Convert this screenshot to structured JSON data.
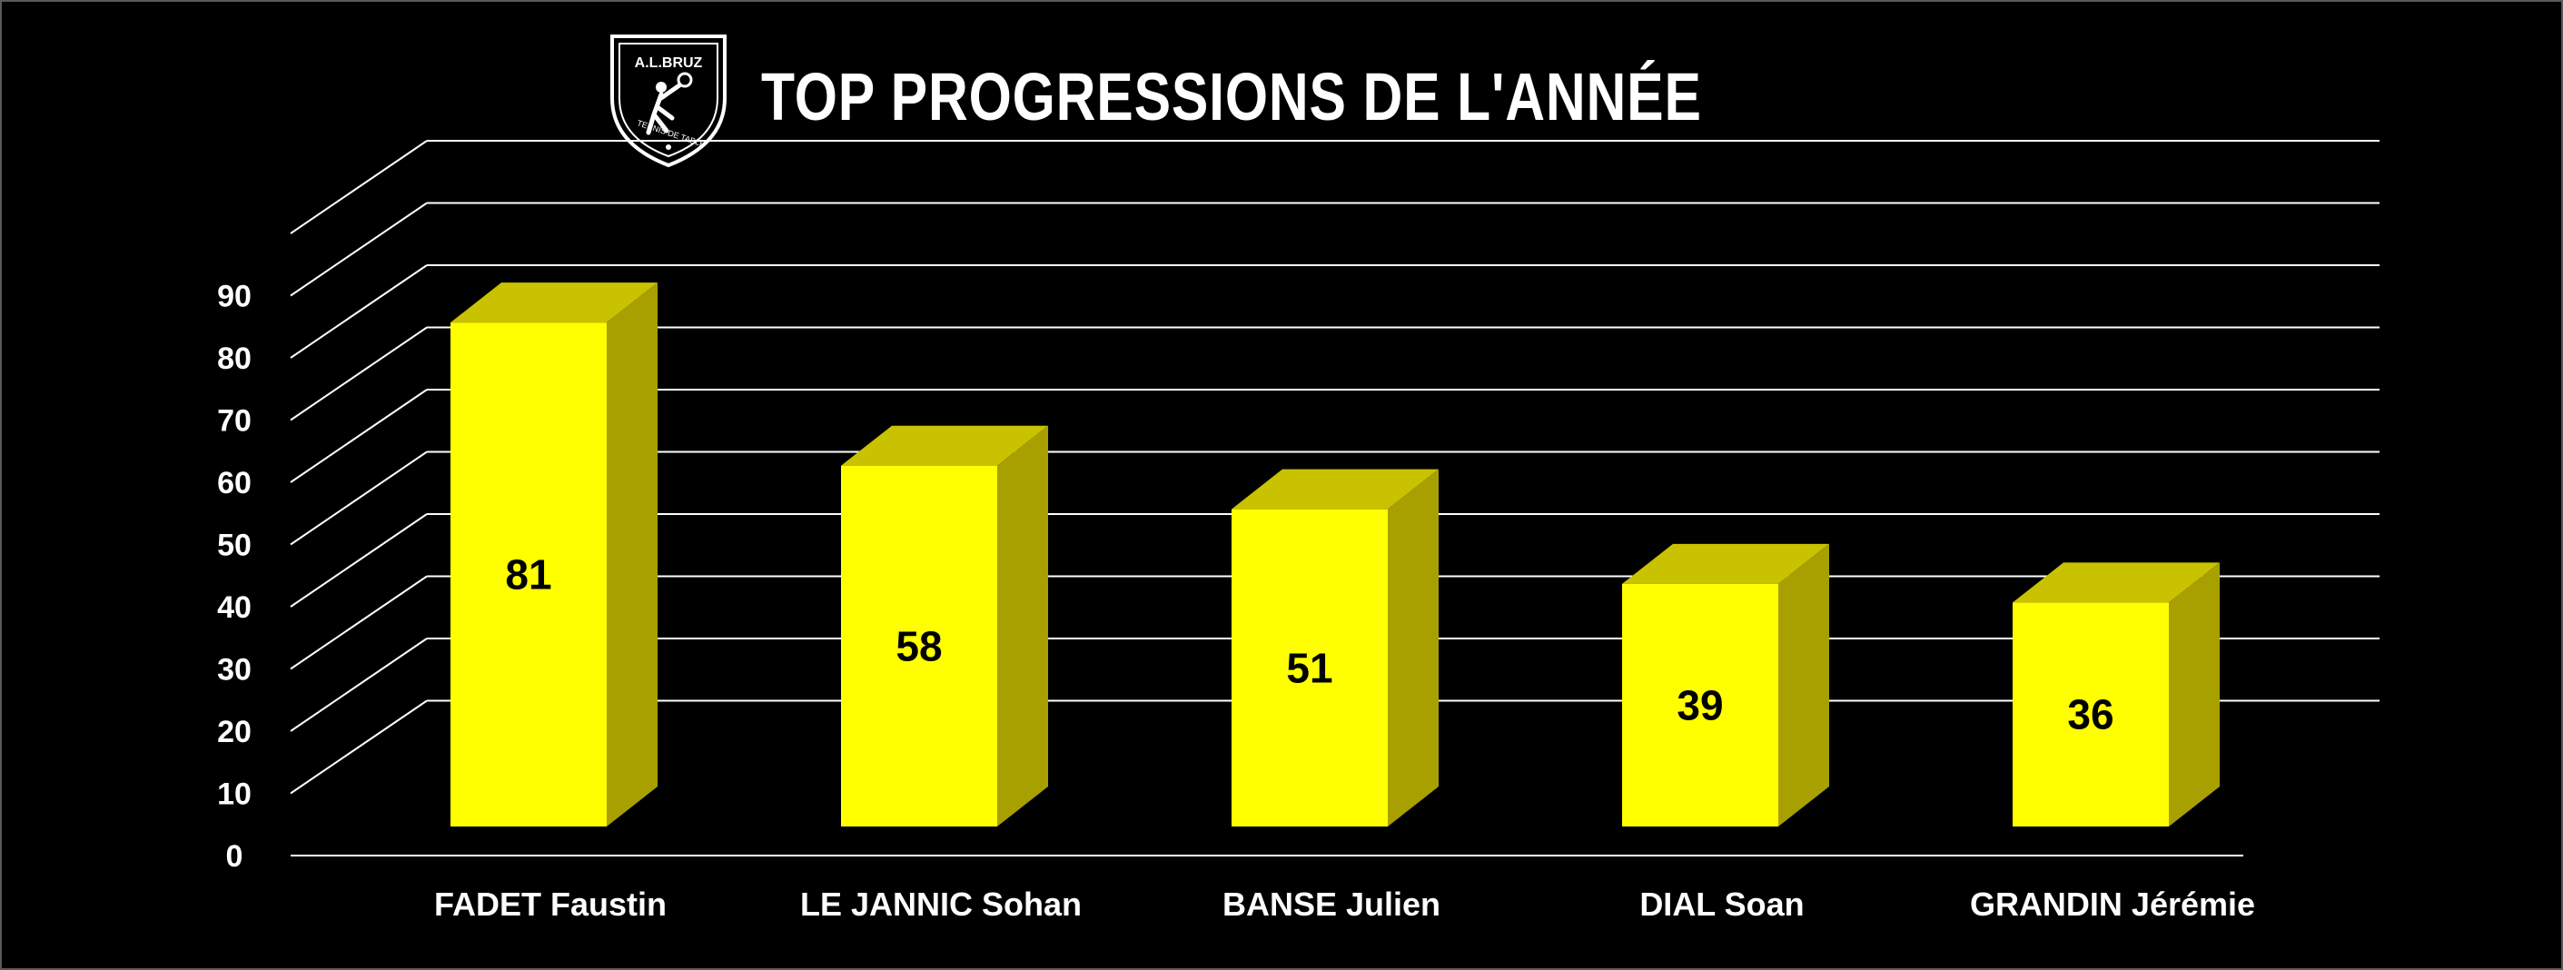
{
  "title": "TOP PROGRESSIONS DE L'ANNÉE",
  "logo": {
    "top_text": "A.L.BRUZ",
    "bottom_text": "TENNIS DE TABLE"
  },
  "colors": {
    "bar_front": "#FFFF00",
    "bar_top": "#C9C200",
    "bar_side": "#A8A000",
    "grid": "#FFFFFF",
    "background": "#000000"
  },
  "chart_data": {
    "type": "bar",
    "style": "3d-column",
    "title": "TOP PROGRESSIONS DE L'ANNÉE",
    "categories": [
      "FADET Faustin",
      "LE JANNIC Sohan",
      "BANSE Julien",
      "DIAL Soan",
      "GRANDIN Jérémie"
    ],
    "values": [
      81,
      58,
      51,
      39,
      36
    ],
    "data_labels": [
      "81",
      "58",
      "51",
      "39",
      "36"
    ],
    "yticks": [
      0,
      10,
      20,
      30,
      40,
      50,
      60,
      70,
      80,
      90
    ],
    "ylim": [
      0,
      100
    ],
    "grid": true,
    "legend": false
  }
}
